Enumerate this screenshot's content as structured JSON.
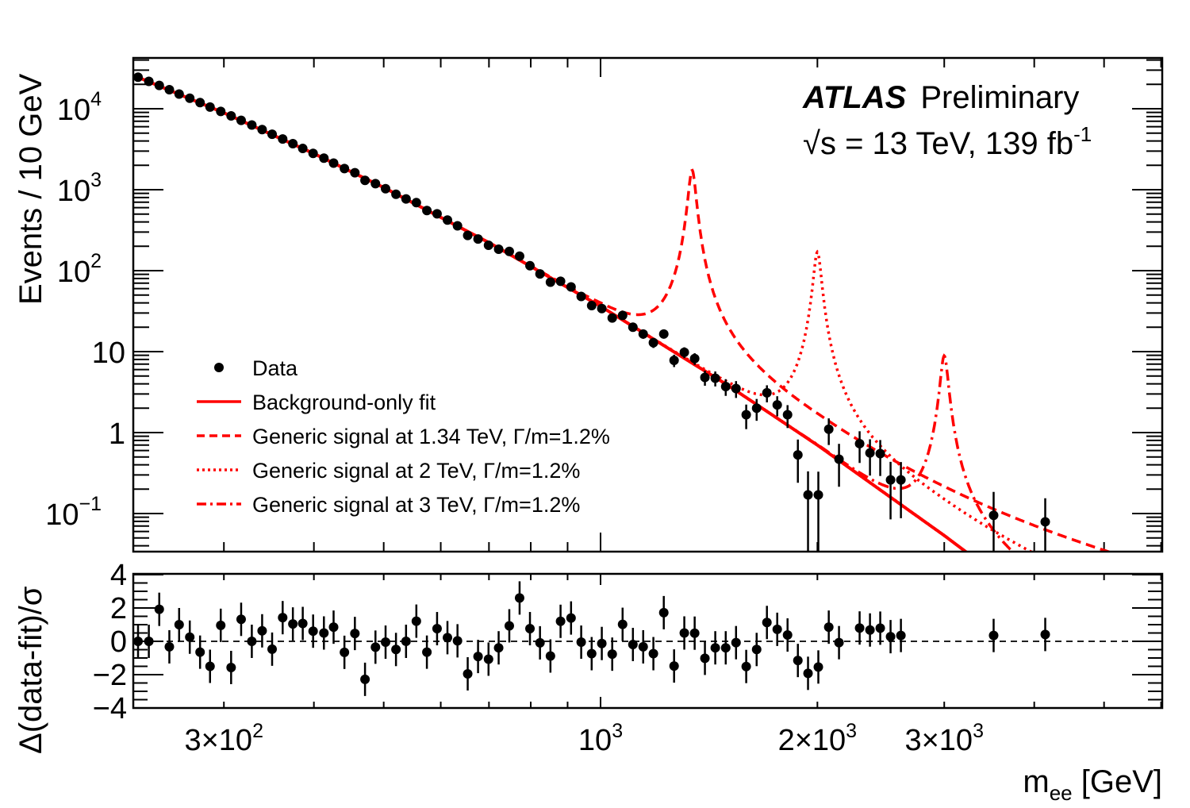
{
  "chart_data": [
    {
      "type": "scatter",
      "panel": "main",
      "ylabel": "Events / 10 GeV",
      "xscale": "log",
      "yscale": "log",
      "xlim": [
        225,
        6000
      ],
      "ylim": [
        0.032,
        42000
      ],
      "annotation": {
        "experiment": "ATLAS",
        "status": "Preliminary",
        "energy_prefix": "√s = 13 TeV, 139 fb",
        "energy_exp": "-1"
      },
      "y_ticks": [
        {
          "base": "10",
          "exp": "4",
          "value": 10000
        },
        {
          "base": "10",
          "exp": "3",
          "value": 1000
        },
        {
          "base": "10",
          "exp": "2",
          "value": 100
        },
        {
          "base": "10",
          "exp": "",
          "value": 10
        },
        {
          "base": "1",
          "exp": "",
          "value": 1
        },
        {
          "base": "10",
          "exp": "−1",
          "value": 0.1
        }
      ],
      "legend": {
        "placement": "bottom-left",
        "entries": [
          {
            "label": "Data",
            "style": "marker"
          },
          {
            "label": "Background-only fit",
            "style": "solid"
          },
          {
            "label": "Generic signal at 1.34 TeV, Γ/m=1.2%",
            "style": "dashed"
          },
          {
            "label": "Generic signal at 2 TeV, Γ/m=1.2%",
            "style": "dotted"
          },
          {
            "label": "Generic signal at 3 TeV, Γ/m=1.2%",
            "style": "dashdot"
          }
        ]
      },
      "colors": {
        "data": "#000000",
        "fit": "#ff0000",
        "signal": "#ff0000"
      },
      "series": [
        {
          "name": "Data",
          "x": [
            228,
            236,
            244,
            252,
            260,
            269,
            278,
            287,
            297,
            307,
            317,
            328,
            339,
            350,
            362,
            374,
            386,
            399,
            413,
            426,
            441,
            456,
            471,
            487,
            503,
            520,
            537,
            555,
            574,
            593,
            613,
            633,
            654,
            676,
            699,
            722,
            747,
            772,
            798,
            824,
            852,
            880,
            910,
            940,
            972,
            1004,
            1038,
            1073,
            1109,
            1146,
            1184,
            1224,
            1265,
            1307,
            1351,
            1396,
            1443,
            1492,
            1542,
            1593,
            1647,
            1702,
            1759,
            1818,
            1879,
            1941,
            2006,
            2074,
            2143,
            2289,
            2366,
            2445,
            2527,
            2612,
            3513,
            4143
          ],
          "y": [
            24500,
            21800,
            19400,
            17200,
            15200,
            13500,
            11900,
            10500,
            9270,
            8160,
            7180,
            6300,
            5530,
            4840,
            4230,
            3700,
            3230,
            2810,
            2450,
            2130,
            1822,
            1619,
            1305,
            1188,
            1028,
            878,
            769,
            692,
            553,
            504,
            422,
            358,
            272,
            246,
            206,
            184,
            173,
            151,
            115,
            91,
            72,
            74,
            63,
            48,
            37,
            34,
            26,
            28,
            20,
            16.5,
            12.9,
            16.5,
            7.8,
            9.8,
            8.2,
            4.8,
            4.7,
            3.7,
            3.5,
            1.66,
            2.0,
            3.1,
            2.2,
            1.66,
            0.53,
            0.17,
            0.17,
            1.1,
            0.47,
            0.73,
            0.56,
            0.55,
            0.26,
            0.26,
            0.095,
            0.079
          ]
        },
        {
          "name": "Background-only fit",
          "x": [
            225,
            300,
            400,
            500,
            700,
            1000,
            1500,
            2000,
            3000,
            3400
          ],
          "y": [
            25700,
            8900,
            2790,
            1064,
            222,
            36.3,
            3.87,
            0.7,
            0.0535,
            0.0232
          ]
        },
        {
          "name": "Generic signal at 1.34 TeV, Γ/m=1.2%",
          "peak_mass": 1340,
          "width_fraction": 0.012,
          "peak_value": 1740
        },
        {
          "name": "Generic signal at 2 TeV, Γ/m=1.2%",
          "peak_mass": 2000,
          "width_fraction": 0.012,
          "peak_value": 170
        },
        {
          "name": "Generic signal at 3 TeV, Γ/m=1.2%",
          "peak_mass": 3000,
          "width_fraction": 0.012,
          "peak_value": 8.9
        }
      ]
    },
    {
      "type": "scatter",
      "panel": "ratio",
      "ylabel": "Δ(data-fit)/σ",
      "xlabel_main": "m",
      "xlabel_sub": "ee",
      "xlabel_unit": " [GeV]",
      "xscale": "log",
      "xlim": [
        225,
        6000
      ],
      "ylim": [
        -4,
        4
      ],
      "y_ticks": [
        "4",
        "2",
        "0",
        "−2",
        "−4"
      ],
      "x_ticks": [
        {
          "base": "3×10",
          "exp": "2",
          "value": 300
        },
        {
          "base": "10",
          "exp": "3",
          "value": 1000
        },
        {
          "base": "2×10",
          "exp": "3",
          "value": 2000
        },
        {
          "base": "3×10",
          "exp": "3",
          "value": 3000
        }
      ],
      "series": [
        {
          "x": [
            228,
            236,
            244,
            252,
            260,
            269,
            278,
            287,
            297,
            307,
            317,
            328,
            339,
            350,
            362,
            374,
            386,
            399,
            413,
            426,
            441,
            456,
            471,
            487,
            503,
            520,
            537,
            555,
            574,
            593,
            613,
            633,
            654,
            676,
            699,
            722,
            747,
            772,
            798,
            824,
            852,
            880,
            910,
            940,
            972,
            1004,
            1038,
            1073,
            1109,
            1146,
            1184,
            1224,
            1265,
            1307,
            1351,
            1396,
            1443,
            1492,
            1542,
            1593,
            1647,
            1702,
            1759,
            1818,
            1879,
            1941,
            2006,
            2074,
            2143,
            2289,
            2366,
            2445,
            2527,
            2612,
            3513,
            4143
          ],
          "y": [
            0,
            0,
            1.92,
            -0.33,
            1.0,
            0.25,
            -0.65,
            -1.5,
            0.96,
            -1.57,
            1.32,
            0,
            0.63,
            -0.47,
            1.42,
            1.04,
            1.07,
            0.61,
            0.5,
            0.85,
            -0.66,
            0.47,
            -2.28,
            -0.35,
            -0.05,
            -0.49,
            0,
            1.21,
            -0.65,
            0.76,
            0.22,
            0.03,
            -1.95,
            -0.91,
            -1.07,
            -0.39,
            0.93,
            2.6,
            0.76,
            -0.09,
            -0.88,
            1.2,
            1.4,
            -0.05,
            -0.74,
            -0.13,
            -0.77,
            1.02,
            -0.19,
            -0.33,
            -0.74,
            1.72,
            -1.48,
            0.5,
            0.49,
            -1.02,
            -0.39,
            -0.39,
            -0.08,
            -1.51,
            -0.49,
            1.13,
            0.72,
            0.38,
            -1.15,
            -1.92,
            -1.54,
            0.85,
            -0.08,
            0.8,
            0.68,
            0.79,
            0.28,
            0.35,
            0.35,
            0.41
          ]
        }
      ]
    }
  ]
}
